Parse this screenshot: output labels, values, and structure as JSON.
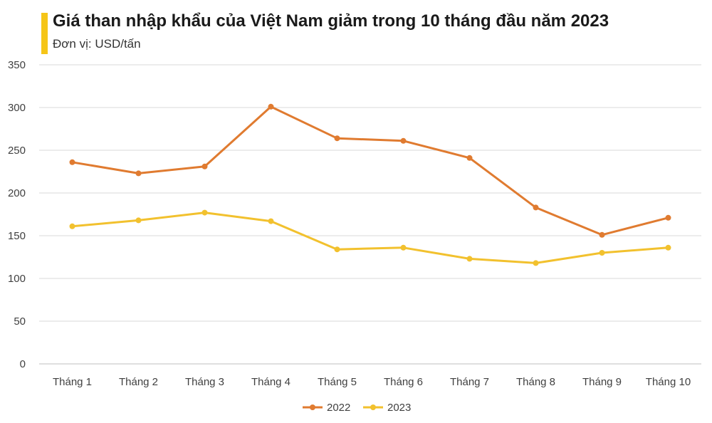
{
  "header": {
    "title": "Giá than nhập khẩu của Việt Nam giảm trong 10 tháng đầu năm 2023",
    "subtitle": "Đơn vị: USD/tấn",
    "accent_color": "#F5C518"
  },
  "chart_data": {
    "type": "line",
    "title": "Giá than nhập khẩu của Việt Nam giảm trong 10 tháng đầu năm 2023",
    "subtitle": "Đơn vị: USD/tấn",
    "xlabel": "",
    "ylabel": "",
    "categories": [
      "Tháng 1",
      "Tháng 2",
      "Tháng 3",
      "Tháng 4",
      "Tháng 5",
      "Tháng 6",
      "Tháng 7",
      "Tháng 8",
      "Tháng 9",
      "Tháng 10"
    ],
    "ylim": [
      0,
      350
    ],
    "yticks": [
      0,
      50,
      100,
      150,
      200,
      250,
      300,
      350
    ],
    "grid": true,
    "legend_position": "bottom-center",
    "series": [
      {
        "name": "2022",
        "color": "#E07B30",
        "values": [
          236,
          223,
          231,
          301,
          264,
          261,
          241,
          183,
          151,
          171
        ]
      },
      {
        "name": "2023",
        "color": "#F2C12E",
        "values": [
          161,
          168,
          177,
          167,
          134,
          136,
          123,
          118,
          130,
          136
        ]
      }
    ]
  }
}
